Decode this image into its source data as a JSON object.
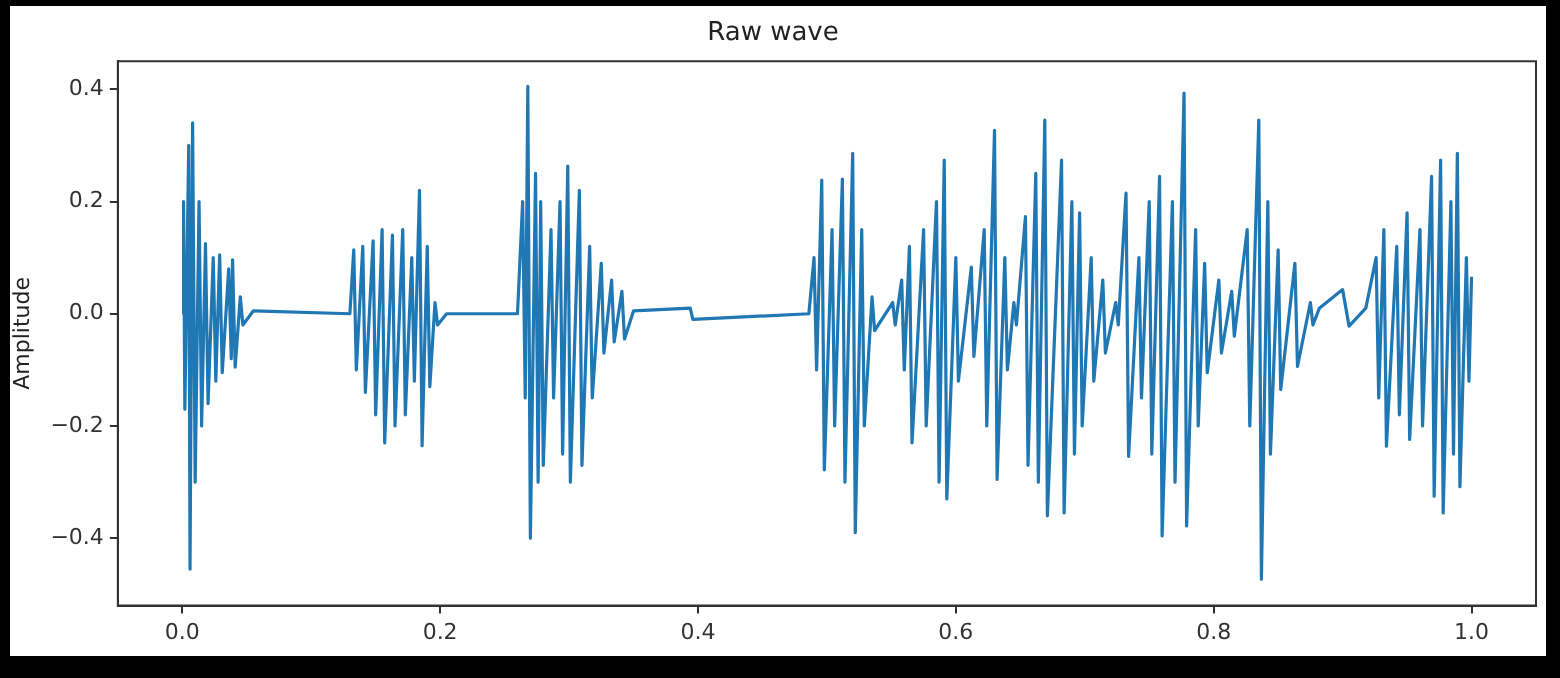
{
  "chart_data": {
    "type": "line",
    "title": "Raw wave",
    "ylabel": "Amplitude",
    "x": [
      0.0,
      0.001,
      0.002,
      0.005,
      0.006,
      0.008,
      0.01,
      0.013,
      0.015,
      0.018,
      0.02,
      0.024,
      0.026,
      0.029,
      0.031,
      0.036,
      0.038,
      0.039,
      0.041,
      0.045,
      0.047,
      0.055,
      0.13,
      0.133,
      0.135,
      0.14,
      0.142,
      0.148,
      0.15,
      0.155,
      0.157,
      0.163,
      0.165,
      0.171,
      0.173,
      0.178,
      0.18,
      0.184,
      0.186,
      0.19,
      0.192,
      0.196,
      0.198,
      0.205,
      0.26,
      0.264,
      0.266,
      0.268,
      0.27,
      0.274,
      0.276,
      0.278,
      0.28,
      0.286,
      0.288,
      0.293,
      0.295,
      0.299,
      0.301,
      0.308,
      0.31,
      0.316,
      0.318,
      0.325,
      0.327,
      0.333,
      0.335,
      0.341,
      0.343,
      0.35,
      0.394,
      0.396,
      0.486,
      0.49,
      0.492,
      0.496,
      0.498,
      0.504,
      0.506,
      0.512,
      0.514,
      0.52,
      0.522,
      0.527,
      0.529,
      0.535,
      0.537,
      0.551,
      0.553,
      0.558,
      0.56,
      0.564,
      0.566,
      0.575,
      0.577,
      0.585,
      0.587,
      0.591,
      0.593,
      0.6,
      0.602,
      0.612,
      0.614,
      0.622,
      0.624,
      0.63,
      0.632,
      0.638,
      0.64,
      0.645,
      0.647,
      0.654,
      0.656,
      0.662,
      0.664,
      0.669,
      0.671,
      0.682,
      0.684,
      0.69,
      0.692,
      0.696,
      0.698,
      0.705,
      0.707,
      0.714,
      0.716,
      0.724,
      0.726,
      0.732,
      0.734,
      0.742,
      0.744,
      0.75,
      0.752,
      0.758,
      0.76,
      0.768,
      0.77,
      0.777,
      0.779,
      0.786,
      0.788,
      0.793,
      0.795,
      0.804,
      0.806,
      0.814,
      0.816,
      0.826,
      0.828,
      0.835,
      0.837,
      0.842,
      0.844,
      0.85,
      0.852,
      0.863,
      0.865,
      0.875,
      0.877,
      0.882,
      0.9,
      0.905,
      0.918,
      0.926,
      0.928,
      0.932,
      0.934,
      0.942,
      0.944,
      0.95,
      0.952,
      0.96,
      0.962,
      0.969,
      0.971,
      0.976,
      0.978,
      0.984,
      0.986,
      0.989,
      0.991,
      0.996,
      0.998,
      1.0
    ],
    "series": [
      {
        "color": "#1f77b4",
        "values": [
          0,
          0.2,
          -0.17,
          0.3,
          -0.455,
          0.34,
          -0.3,
          0.2,
          -0.2,
          0.125,
          -0.16,
          0.1,
          -0.12,
          0.105,
          -0.105,
          0.08,
          -0.08,
          0.096,
          -0.095,
          0.03,
          -0.02,
          0.005,
          0,
          0.114,
          -0.1,
          0.12,
          -0.14,
          0.13,
          -0.18,
          0.15,
          -0.23,
          0.14,
          -0.2,
          0.15,
          -0.18,
          0.1,
          -0.12,
          0.22,
          -0.235,
          0.12,
          -0.13,
          0.02,
          -0.02,
          0,
          0,
          0.2,
          -0.15,
          0.405,
          -0.4,
          0.25,
          -0.3,
          0.2,
          -0.27,
          0.15,
          -0.15,
          0.2,
          -0.25,
          0.263,
          -0.3,
          0.22,
          -0.27,
          0.12,
          -0.15,
          0.09,
          -0.07,
          0.06,
          -0.05,
          0.04,
          -0.045,
          0.005,
          0.01,
          -0.01,
          0,
          0.1,
          -0.1,
          0.238,
          -0.278,
          0.15,
          -0.2,
          0.24,
          -0.3,
          0.286,
          -0.39,
          0.15,
          -0.2,
          0.03,
          -0.03,
          0.02,
          -0.02,
          0.06,
          -0.1,
          0.12,
          -0.23,
          0.15,
          -0.2,
          0.2,
          -0.3,
          0.274,
          -0.33,
          0.1,
          -0.12,
          0.083,
          -0.076,
          0.15,
          -0.2,
          0.327,
          -0.295,
          0.1,
          -0.1,
          0.02,
          -0.02,
          0.173,
          -0.27,
          0.25,
          -0.3,
          0.345,
          -0.36,
          0.274,
          -0.355,
          0.2,
          -0.25,
          0.18,
          -0.2,
          0.1,
          -0.12,
          0.06,
          -0.07,
          0.02,
          -0.02,
          0.215,
          -0.254,
          0.1,
          -0.15,
          0.2,
          -0.25,
          0.245,
          -0.396,
          0.2,
          -0.3,
          0.393,
          -0.378,
          0.15,
          -0.2,
          0.09,
          -0.105,
          0.06,
          -0.07,
          0.04,
          -0.04,
          0.15,
          -0.2,
          0.345,
          -0.473,
          0.2,
          -0.25,
          0.114,
          -0.135,
          0.09,
          -0.094,
          0.02,
          -0.02,
          0.01,
          0.043,
          -0.022,
          0.01,
          0.1,
          -0.15,
          0.15,
          -0.236,
          0.12,
          -0.18,
          0.18,
          -0.224,
          0.15,
          -0.2,
          0.245,
          -0.325,
          0.274,
          -0.355,
          0.2,
          -0.25,
          0.286,
          -0.308,
          0.1,
          -0.12,
          0.066
        ]
      }
    ],
    "xlim": [
      -0.05,
      1.05
    ],
    "ylim": [
      -0.52,
      0.45
    ],
    "xticks": [
      {
        "value": 0,
        "label": "0.0"
      },
      {
        "value": 0.2,
        "label": "0.2"
      },
      {
        "value": 0.4,
        "label": "0.4"
      },
      {
        "value": 0.6,
        "label": "0.6"
      },
      {
        "value": 0.8,
        "label": "0.8"
      },
      {
        "value": 1,
        "label": "1.0"
      }
    ],
    "yticks": [
      {
        "value": -0.4,
        "label": "−0.4"
      },
      {
        "value": -0.2,
        "label": "−0.2"
      },
      {
        "value": 0,
        "label": "0.0"
      },
      {
        "value": 0.2,
        "label": "0.2"
      },
      {
        "value": 0.4,
        "label": "0.4"
      }
    ],
    "grid": false,
    "legend": false,
    "marker": "none",
    "line_style": "solid"
  }
}
